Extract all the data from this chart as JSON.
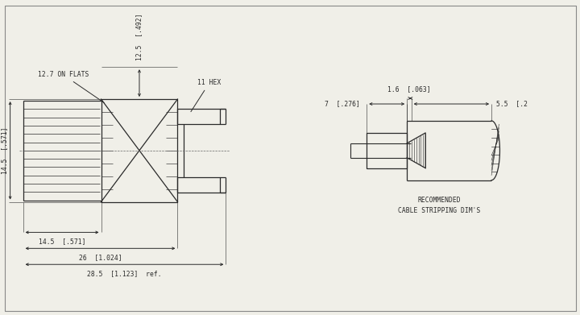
{
  "bg_color": "#f0efe8",
  "line_color": "#2a2a2a",
  "text_color": "#2a2a2a",
  "lw": 0.9,
  "labels": {
    "on_flats": "12.7 ON FLATS",
    "height_12_5": "12.5  [.492]",
    "hex_11": "11 HEX",
    "height_14_5": "14.5  [.571]",
    "width_14_5": "14.5  [.571]",
    "width_26": "26  [1.024]",
    "width_28_5": "28.5  [1.123]  ref.",
    "cable_7": "7  [.276]",
    "cable_1_6": "1.6  [.063]",
    "cable_5_5": "5.5  [.2",
    "cable_label": "RECOMMENDED\nCABLE STRIPPING DIM'S"
  }
}
